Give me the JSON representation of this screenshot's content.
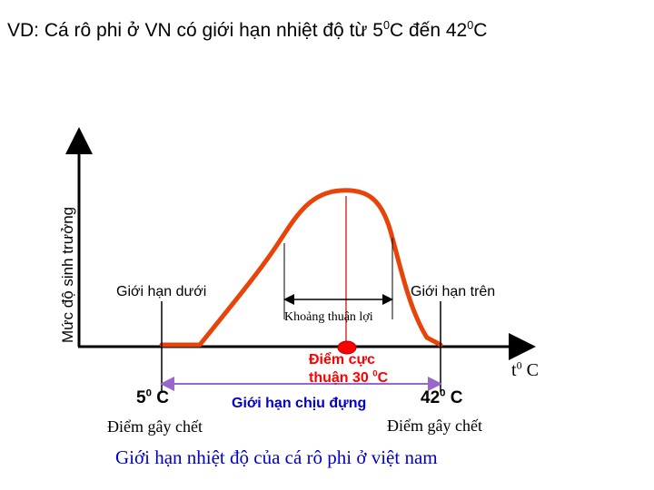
{
  "title": {
    "prefix": "VD: Cá rô phi ở VN có giới hạn nhiệt độ từ 5",
    "sup1": "0",
    "mid": "C đến 42",
    "sup2": "0",
    "suffix": "C"
  },
  "axes": {
    "y_label": "Mức độ sinh trưởng",
    "x_label_t": "t",
    "x_label_sup": "0",
    "x_label_unit": " C"
  },
  "limits": {
    "lower": "Giới hạn dưới",
    "upper": "Giới hạn trên",
    "favorable_range": "Khoảng thuận lợi",
    "optimal_line1": "Điểm cực",
    "optimal_line2_prefix": "thuận 30 ",
    "optimal_sup": "0",
    "optimal_unit": "C",
    "tolerance": "Giới hạn chịu đựng"
  },
  "temps": {
    "low_value": "5",
    "low_sup": "0",
    "low_unit": " C",
    "high_value": "42",
    "high_sup": "0",
    "high_unit": " C",
    "low_death": "Điểm gây chết",
    "high_death": "Điểm gây chết"
  },
  "caption": "Giới hạn nhiệt độ của cá rô phi ở việt nam",
  "colors": {
    "curve": "#e8440a",
    "marker": "#ff0000",
    "optimal_line": "#cc0000",
    "tolerance_arrow": "#9966cc",
    "caption": "#0000cc"
  }
}
